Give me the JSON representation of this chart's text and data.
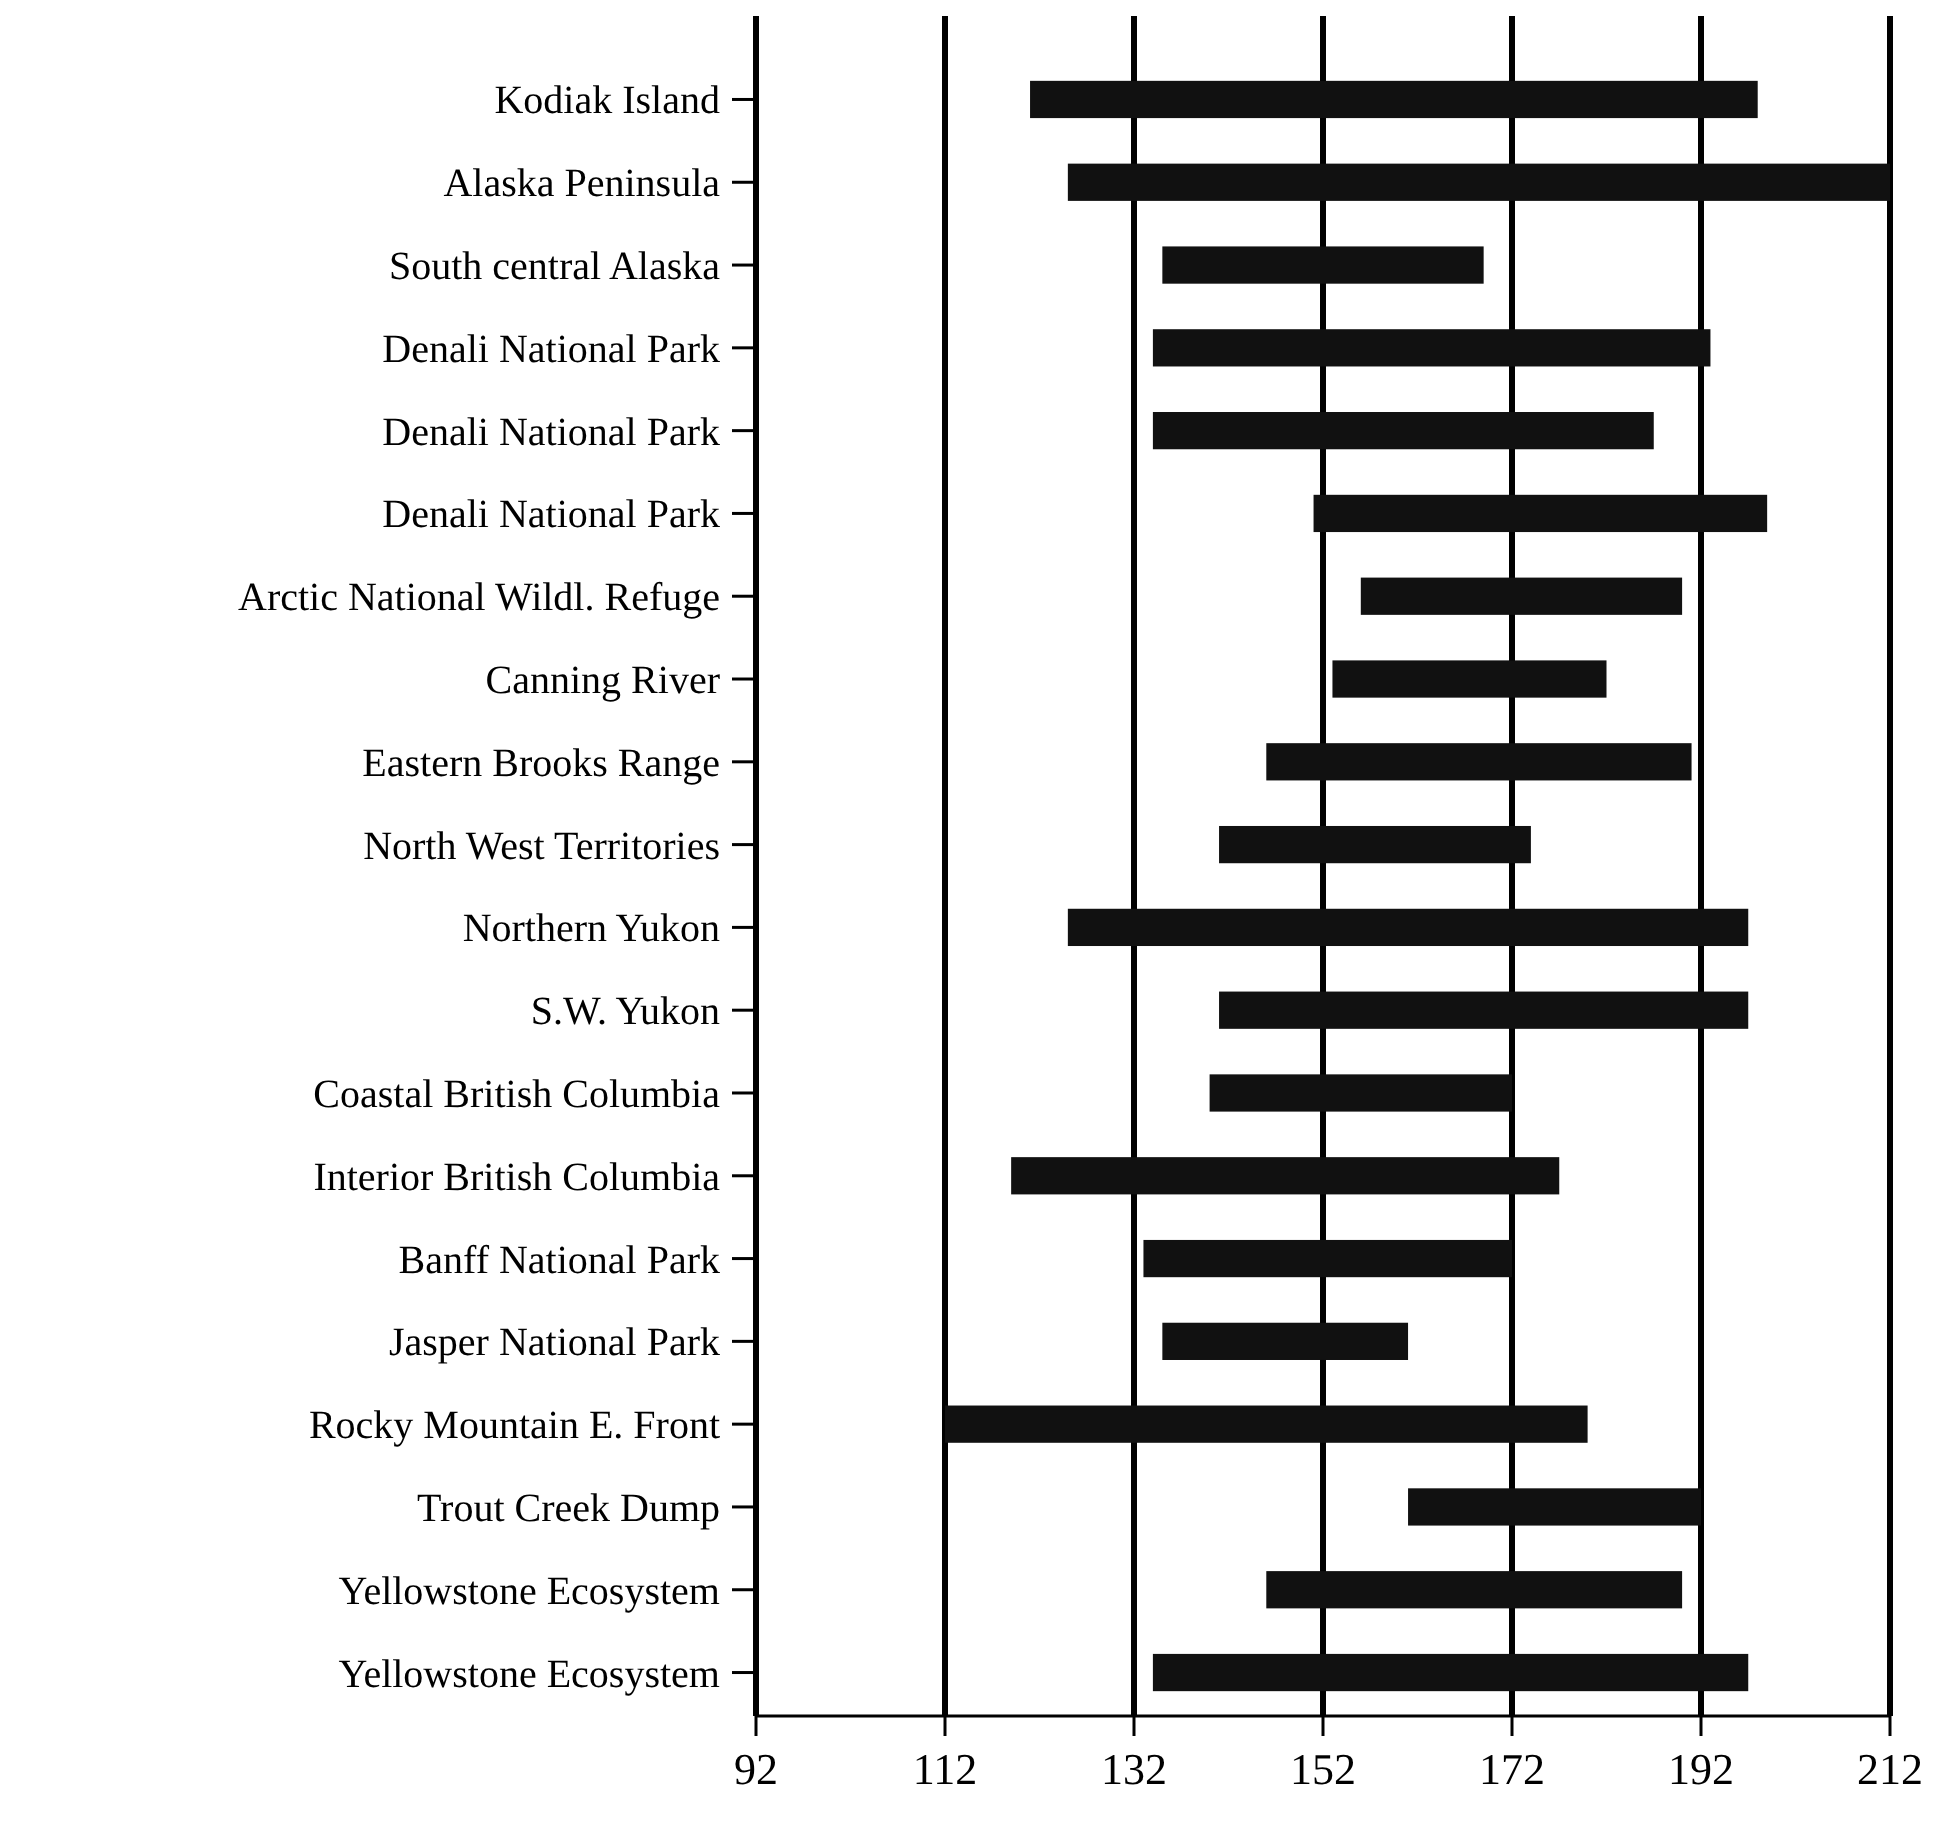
{
  "chart_data": {
    "type": "bar",
    "orientation": "horizontal",
    "categories": [
      "Kodiak Island",
      "Alaska Peninsula",
      "South central Alaska",
      "Denali National Park",
      "Denali National Park",
      "Denali National Park",
      "Arctic National Wildl. Refuge",
      "Canning River",
      "Eastern Brooks Range",
      "North West Territories",
      "Northern Yukon",
      "S.W. Yukon",
      "Coastal British Columbia",
      "Interior British Columbia",
      "Banff National Park",
      "Jasper National Park",
      "Rocky Mountain E. Front",
      "Trout Creek Dump",
      "Yellowstone Ecosystem",
      "Yellowstone Ecosystem"
    ],
    "base": [
      121,
      125,
      135,
      134,
      134,
      151,
      156,
      153,
      146,
      141,
      125,
      141,
      140,
      119,
      133,
      135,
      112,
      161,
      146,
      134
    ],
    "values": [
      77,
      87,
      34,
      59,
      53,
      48,
      34,
      29,
      45,
      33,
      72,
      56,
      32,
      58,
      39,
      26,
      68,
      31,
      44,
      63
    ],
    "color": "#111111",
    "xlim": [
      92,
      212
    ],
    "xticks": [
      92,
      112,
      132,
      152,
      172,
      192,
      212
    ],
    "grid": "x"
  }
}
